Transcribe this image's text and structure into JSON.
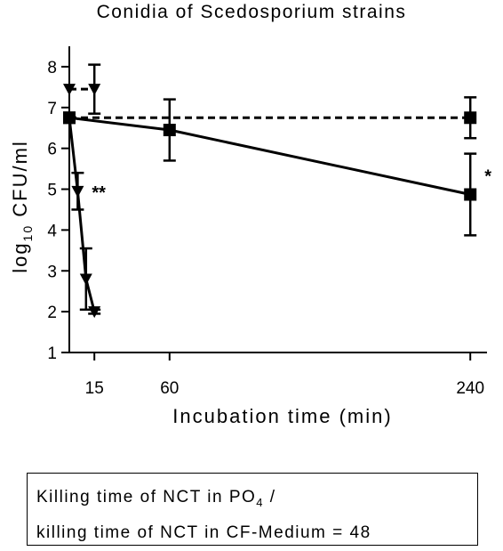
{
  "chart_data": {
    "type": "line",
    "title": "Conidia of Scedosporium strains",
    "xlabel": "Incubation time (min)",
    "ylabel": {
      "main": "log",
      "sub": "10",
      "rest": " CFU/ml"
    },
    "x_ticks": [
      15,
      60,
      240
    ],
    "y_ticks": [
      1,
      2,
      3,
      4,
      5,
      6,
      7,
      8
    ],
    "xlim": [
      0,
      250
    ],
    "ylim": [
      1,
      8.5
    ],
    "grid": false,
    "legend": "none",
    "series": [
      {
        "style": "dashed",
        "marker": "square",
        "points": [
          {
            "x": 0,
            "y": 6.75,
            "err": 0
          },
          {
            "x": 240,
            "y": 6.75,
            "err": 0.5
          }
        ]
      },
      {
        "style": "dashed",
        "marker": "triangle-down",
        "points": [
          {
            "x": 0,
            "y": 7.45,
            "err": 0
          },
          {
            "x": 15,
            "y": 7.45,
            "err": 0.6
          }
        ]
      },
      {
        "style": "solid",
        "marker": "square",
        "points": [
          {
            "x": 0,
            "y": 6.75,
            "err": 0
          },
          {
            "x": 60,
            "y": 6.45,
            "err": 0.75
          },
          {
            "x": 240,
            "y": 4.87,
            "err": 1.0
          }
        ]
      },
      {
        "style": "solid",
        "marker": "triangle-down",
        "points": [
          {
            "x": 0,
            "y": 6.75,
            "err": 0
          },
          {
            "x": 5,
            "y": 4.95,
            "err": 0.45
          },
          {
            "x": 10,
            "y": 2.8,
            "err": 0.75
          },
          {
            "x": 15,
            "y": 2.0,
            "err": 0.05
          }
        ]
      }
    ],
    "annotations": [
      {
        "text": "**",
        "x": 5,
        "y": 4.95
      },
      {
        "text": "*",
        "x": 240,
        "y": 5.35
      }
    ]
  },
  "note": {
    "line1_text": "Killing time of NCT in PO",
    "line1_sub": "4",
    "line1_end": " /",
    "line2": "killing time of NCT in CF-Medium  = 48"
  }
}
